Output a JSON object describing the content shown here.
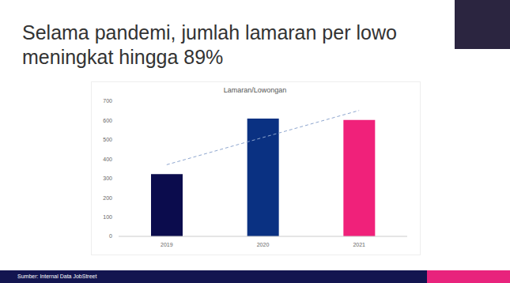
{
  "slide": {
    "heading": [
      "Selama pandemi, jumlah lamaran per lowo",
      "meningkat hingga 89%"
    ],
    "source": "Sumber: Internal Data JobStreet"
  },
  "chart_data": {
    "type": "bar",
    "title": "Lamaran/Lowongan",
    "categories": [
      "2019",
      "2020",
      "2021"
    ],
    "values": [
      322,
      610,
      603
    ],
    "colors": [
      "#0b0c4d",
      "#0a3182",
      "#f0217a"
    ],
    "trend": {
      "values": [
        371,
        512,
        652
      ],
      "color": "#8ea6cf",
      "line_style": "dashed"
    },
    "ylim": [
      0,
      700
    ],
    "yticks": [
      0,
      100,
      200,
      300,
      400,
      500,
      600,
      700
    ],
    "grid": false
  }
}
